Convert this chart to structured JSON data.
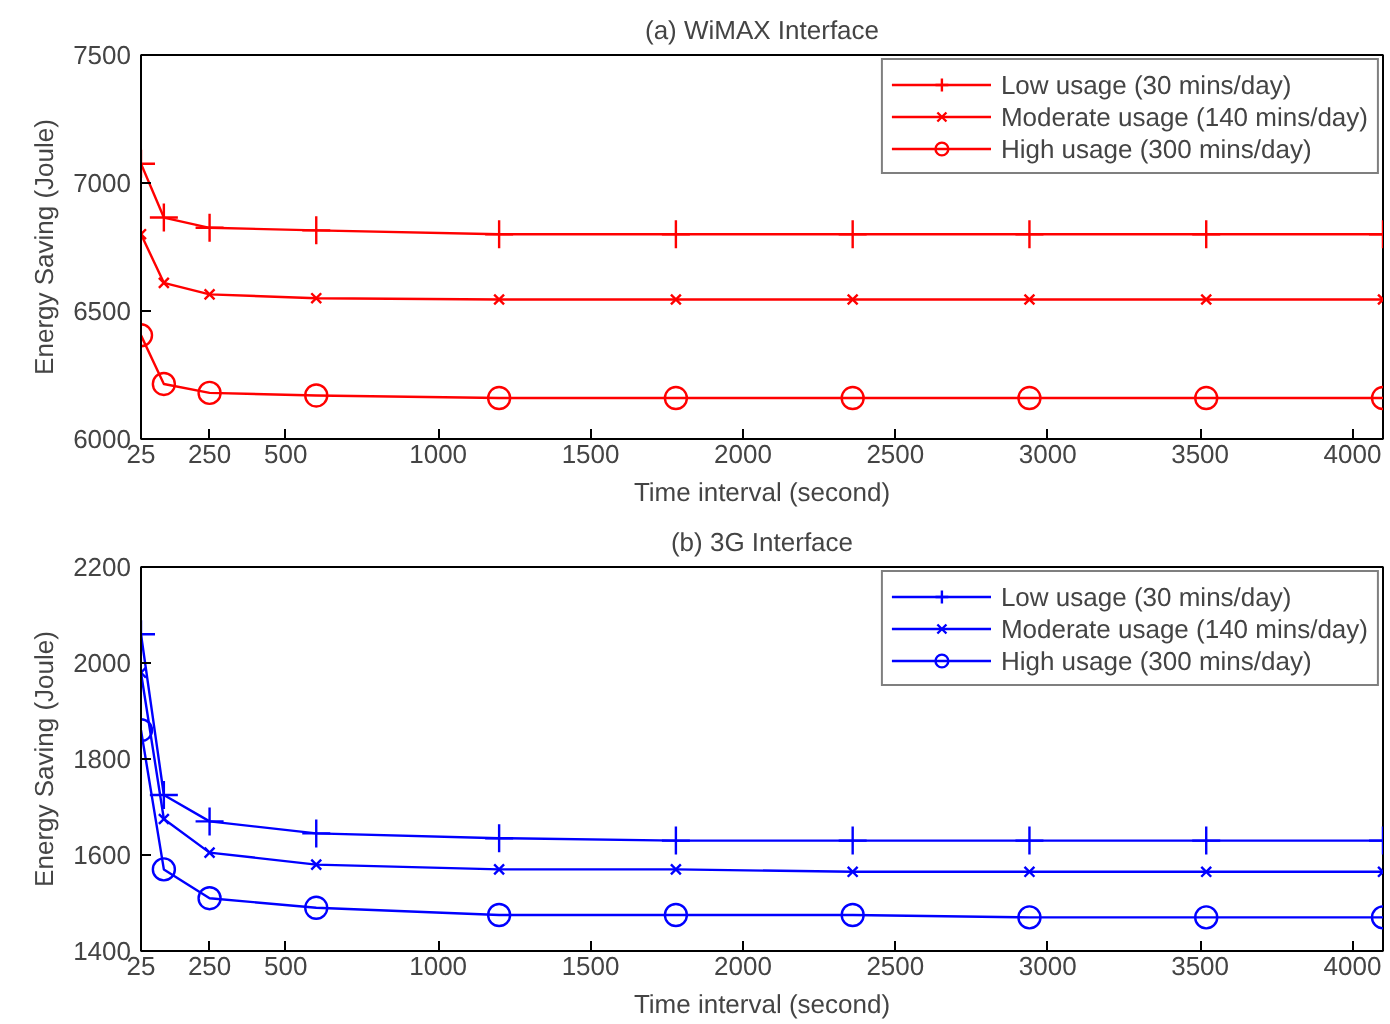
{
  "chart_data": [
    {
      "type": "line",
      "title": "(a) WiMAX Interface",
      "xlabel": "Time interval (second)",
      "ylabel": "Energy Saving (Joule)",
      "x": [
        25,
        100,
        250,
        600,
        1200,
        1780,
        2360,
        2940,
        3520,
        4100
      ],
      "xlim": [
        25,
        4100
      ],
      "xticks": [
        25,
        250,
        500,
        1000,
        1500,
        2000,
        2500,
        3000,
        3500,
        4000
      ],
      "ylim": [
        6000,
        7500
      ],
      "yticks": [
        6000,
        6500,
        7000,
        7500
      ],
      "legend": "top right",
      "grid": false,
      "series": [
        {
          "name": "Low usage (30 mins/day)",
          "color": "#ff0000",
          "marker": "cross",
          "values": [
            7075,
            6865,
            6825,
            6815,
            6800,
            6800,
            6800,
            6800,
            6800,
            6800
          ]
        },
        {
          "name": "Moderate usage (140 mins/day)",
          "color": "#ff0000",
          "marker": "x",
          "values": [
            6800,
            6610,
            6565,
            6550,
            6545,
            6545,
            6545,
            6545,
            6545,
            6545
          ]
        },
        {
          "name": "High usage (300 mins/day)",
          "color": "#ff0000",
          "marker": "circle",
          "values": [
            6405,
            6215,
            6180,
            6170,
            6160,
            6160,
            6160,
            6160,
            6160,
            6160
          ]
        }
      ]
    },
    {
      "type": "line",
      "title": "(b) 3G Interface",
      "xlabel": "Time interval (second)",
      "ylabel": "Energy Saving (Joule)",
      "x": [
        25,
        100,
        250,
        600,
        1200,
        1780,
        2360,
        2940,
        3520,
        4100
      ],
      "xlim": [
        25,
        4100
      ],
      "xticks": [
        25,
        250,
        500,
        1000,
        1500,
        2000,
        2500,
        3000,
        3500,
        4000
      ],
      "ylim": [
        1400,
        2200
      ],
      "yticks": [
        1400,
        1600,
        1800,
        2000,
        2200
      ],
      "legend": "top right",
      "grid": false,
      "series": [
        {
          "name": "Low usage (30 mins/day)",
          "color": "#0000ff",
          "marker": "cross",
          "values": [
            2060,
            1725,
            1670,
            1645,
            1635,
            1630,
            1630,
            1630,
            1630,
            1630
          ]
        },
        {
          "name": "Moderate usage (140 mins/day)",
          "color": "#0000ff",
          "marker": "x",
          "values": [
            1980,
            1675,
            1605,
            1580,
            1570,
            1570,
            1565,
            1565,
            1565,
            1565
          ]
        },
        {
          "name": "High usage (300 mins/day)",
          "color": "#0000ff",
          "marker": "circle",
          "values": [
            1860,
            1570,
            1510,
            1490,
            1475,
            1475,
            1475,
            1470,
            1470,
            1470
          ]
        }
      ]
    }
  ]
}
